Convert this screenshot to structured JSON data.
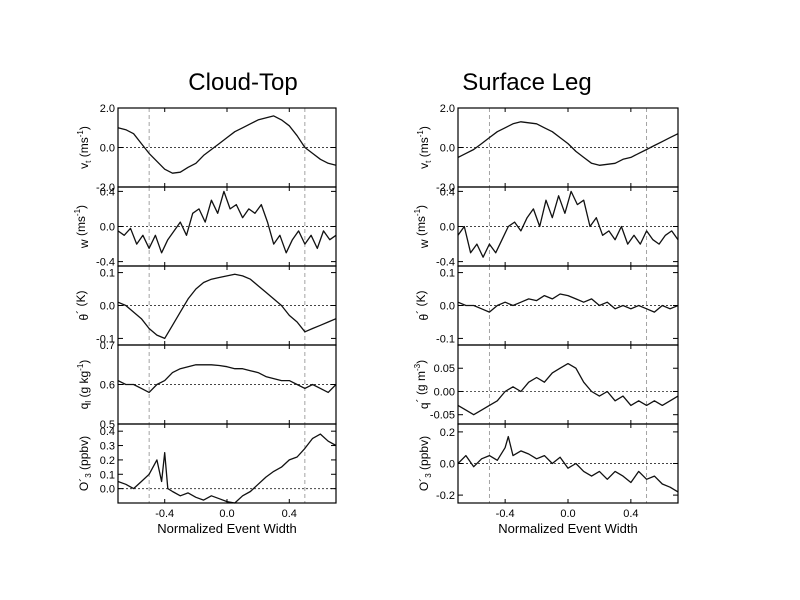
{
  "chart_data": [
    {
      "type": "line",
      "title": "Cloud-Top",
      "xlabel": "Normalized Event Width",
      "xlim": [
        -0.7,
        0.7
      ],
      "xticks": [
        "-0.4",
        "0.0",
        "0.4"
      ],
      "xtick_values": [
        -0.4,
        0.0,
        0.4
      ],
      "vertical_reference_lines": [
        -0.5,
        0.5
      ],
      "panels": [
        {
          "ylabel": "v",
          "ylabel_sub": "t",
          "ylabel_unit_before": " (ms",
          "ylabel_sup": "-1",
          "ylabel_unit_after": ")",
          "ylim": [
            -2.0,
            2.0
          ],
          "yticks": [
            "2.0",
            "0.0",
            "-2.0"
          ],
          "ytick_values": [
            2.0,
            0.0,
            -2.0
          ],
          "x": [
            -0.7,
            -0.65,
            -0.6,
            -0.55,
            -0.5,
            -0.45,
            -0.4,
            -0.35,
            -0.3,
            -0.25,
            -0.2,
            -0.15,
            -0.1,
            -0.05,
            0.0,
            0.05,
            0.1,
            0.15,
            0.2,
            0.25,
            0.3,
            0.35,
            0.4,
            0.45,
            0.5,
            0.55,
            0.6,
            0.65,
            0.7
          ],
          "y": [
            1.0,
            0.9,
            0.7,
            0.2,
            -0.3,
            -0.7,
            -1.1,
            -1.3,
            -1.25,
            -1.0,
            -0.8,
            -0.4,
            -0.1,
            0.2,
            0.5,
            0.8,
            1.0,
            1.2,
            1.4,
            1.5,
            1.6,
            1.4,
            1.1,
            0.6,
            0.0,
            -0.3,
            -0.6,
            -0.8,
            -0.9
          ]
        },
        {
          "ylabel": "w",
          "ylabel_sub": "",
          "ylabel_unit_before": " (ms",
          "ylabel_sup": "-1",
          "ylabel_unit_after": ")",
          "ylim": [
            -0.45,
            0.45
          ],
          "yticks": [
            "0.4",
            "0.0",
            "-0.4"
          ],
          "ytick_values": [
            0.4,
            0.0,
            -0.4
          ],
          "x": [
            -0.7,
            -0.66,
            -0.62,
            -0.58,
            -0.54,
            -0.5,
            -0.46,
            -0.42,
            -0.38,
            -0.34,
            -0.3,
            -0.26,
            -0.22,
            -0.18,
            -0.14,
            -0.1,
            -0.06,
            -0.02,
            0.02,
            0.06,
            0.1,
            0.14,
            0.18,
            0.22,
            0.26,
            0.3,
            0.34,
            0.38,
            0.42,
            0.46,
            0.5,
            0.54,
            0.58,
            0.62,
            0.66,
            0.7
          ],
          "y": [
            -0.05,
            -0.1,
            -0.02,
            -0.2,
            -0.1,
            -0.25,
            -0.1,
            -0.3,
            -0.15,
            -0.05,
            0.05,
            -0.1,
            0.15,
            0.2,
            0.05,
            0.3,
            0.15,
            0.4,
            0.2,
            0.25,
            0.1,
            0.2,
            0.15,
            0.25,
            0.05,
            -0.2,
            -0.1,
            -0.3,
            -0.15,
            -0.05,
            -0.2,
            -0.1,
            -0.25,
            -0.05,
            -0.15,
            -0.1
          ]
        },
        {
          "ylabel": "θ",
          "ylabel_sub": "",
          "ylabel_unit_before": "´ (K)",
          "ylabel_sup": "",
          "ylabel_unit_after": "",
          "ylim": [
            -0.12,
            0.12
          ],
          "yticks": [
            "0.1",
            "0.0",
            "-0.1"
          ],
          "ytick_values": [
            0.1,
            0.0,
            -0.1
          ],
          "x": [
            -0.7,
            -0.65,
            -0.6,
            -0.55,
            -0.5,
            -0.45,
            -0.4,
            -0.35,
            -0.3,
            -0.25,
            -0.2,
            -0.15,
            -0.1,
            -0.05,
            0.0,
            0.05,
            0.1,
            0.15,
            0.2,
            0.25,
            0.3,
            0.35,
            0.4,
            0.45,
            0.5,
            0.55,
            0.6,
            0.65,
            0.7
          ],
          "y": [
            0.01,
            0.0,
            -0.02,
            -0.04,
            -0.07,
            -0.09,
            -0.1,
            -0.06,
            -0.02,
            0.02,
            0.05,
            0.07,
            0.08,
            0.085,
            0.09,
            0.095,
            0.09,
            0.08,
            0.06,
            0.04,
            0.02,
            0.0,
            -0.03,
            -0.05,
            -0.08,
            -0.07,
            -0.06,
            -0.05,
            -0.04
          ]
        },
        {
          "ylabel": "q",
          "ylabel_sub": "l",
          "ylabel_unit_before": " (g kg",
          "ylabel_sup": "-1",
          "ylabel_unit_after": ")",
          "ylim": [
            0.5,
            0.7
          ],
          "yticks": [
            "0.7",
            "0.6",
            "0.5"
          ],
          "ytick_values": [
            0.7,
            0.6,
            0.5
          ],
          "x": [
            -0.7,
            -0.65,
            -0.6,
            -0.55,
            -0.5,
            -0.45,
            -0.4,
            -0.35,
            -0.3,
            -0.25,
            -0.2,
            -0.15,
            -0.1,
            -0.05,
            0.0,
            0.05,
            0.1,
            0.15,
            0.2,
            0.25,
            0.3,
            0.35,
            0.4,
            0.45,
            0.5,
            0.55,
            0.6,
            0.65,
            0.7
          ],
          "y": [
            0.61,
            0.6,
            0.6,
            0.59,
            0.58,
            0.6,
            0.61,
            0.63,
            0.64,
            0.645,
            0.65,
            0.65,
            0.65,
            0.648,
            0.645,
            0.64,
            0.64,
            0.635,
            0.63,
            0.62,
            0.615,
            0.61,
            0.61,
            0.6,
            0.59,
            0.6,
            0.59,
            0.58,
            0.6
          ]
        },
        {
          "ylabel": "O´",
          "ylabel_sub": "3",
          "ylabel_unit_before": " (ppbv)",
          "ylabel_sup": "",
          "ylabel_unit_after": "",
          "ylim": [
            -0.1,
            0.45
          ],
          "yticks": [
            "0.4",
            "0.3",
            "0.2",
            "0.1",
            "0.0"
          ],
          "ytick_values": [
            0.4,
            0.3,
            0.2,
            0.1,
            0.0
          ],
          "x": [
            -0.7,
            -0.65,
            -0.6,
            -0.55,
            -0.5,
            -0.45,
            -0.42,
            -0.4,
            -0.38,
            -0.35,
            -0.3,
            -0.25,
            -0.2,
            -0.15,
            -0.1,
            -0.05,
            0.0,
            0.05,
            0.1,
            0.15,
            0.2,
            0.25,
            0.3,
            0.35,
            0.4,
            0.45,
            0.5,
            0.55,
            0.6,
            0.65,
            0.7
          ],
          "y": [
            0.05,
            0.03,
            0.0,
            0.05,
            0.1,
            0.2,
            0.05,
            0.25,
            0.0,
            -0.02,
            -0.05,
            -0.03,
            -0.06,
            -0.08,
            -0.05,
            -0.07,
            -0.09,
            -0.1,
            -0.05,
            -0.02,
            0.03,
            0.08,
            0.12,
            0.15,
            0.2,
            0.22,
            0.28,
            0.35,
            0.38,
            0.33,
            0.3
          ]
        }
      ]
    },
    {
      "type": "line",
      "title": "Surface Leg",
      "xlabel": "Normalized Event Width",
      "xlim": [
        -0.7,
        0.7
      ],
      "xticks": [
        "-0.4",
        "0.0",
        "0.4"
      ],
      "xtick_values": [
        -0.4,
        0.0,
        0.4
      ],
      "vertical_reference_lines": [
        -0.5,
        0.5
      ],
      "panels": [
        {
          "ylabel": "v",
          "ylabel_sub": "t",
          "ylabel_unit_before": " (ms",
          "ylabel_sup": "-1",
          "ylabel_unit_after": ")",
          "ylim": [
            -2.0,
            2.0
          ],
          "yticks": [
            "2.0",
            "0.0",
            "-2.0"
          ],
          "ytick_values": [
            2.0,
            0.0,
            -2.0
          ],
          "x": [
            -0.7,
            -0.65,
            -0.6,
            -0.55,
            -0.5,
            -0.45,
            -0.4,
            -0.35,
            -0.3,
            -0.25,
            -0.2,
            -0.15,
            -0.1,
            -0.05,
            0.0,
            0.05,
            0.1,
            0.15,
            0.2,
            0.25,
            0.3,
            0.35,
            0.4,
            0.45,
            0.5,
            0.55,
            0.6,
            0.65,
            0.7
          ],
          "y": [
            -0.5,
            -0.3,
            -0.1,
            0.2,
            0.5,
            0.8,
            1.0,
            1.2,
            1.3,
            1.25,
            1.2,
            1.0,
            0.8,
            0.5,
            0.2,
            -0.2,
            -0.5,
            -0.8,
            -0.9,
            -0.85,
            -0.8,
            -0.6,
            -0.5,
            -0.3,
            -0.1,
            0.1,
            0.3,
            0.5,
            0.7
          ]
        },
        {
          "ylabel": "w",
          "ylabel_sub": "",
          "ylabel_unit_before": " (ms",
          "ylabel_sup": "-1",
          "ylabel_unit_after": ")",
          "ylim": [
            -0.45,
            0.45
          ],
          "yticks": [
            "0.4",
            "0.0",
            "-0.4"
          ],
          "ytick_values": [
            0.4,
            0.0,
            -0.4
          ],
          "x": [
            -0.7,
            -0.66,
            -0.62,
            -0.58,
            -0.54,
            -0.5,
            -0.46,
            -0.42,
            -0.38,
            -0.34,
            -0.3,
            -0.26,
            -0.22,
            -0.18,
            -0.14,
            -0.1,
            -0.06,
            -0.02,
            0.02,
            0.06,
            0.1,
            0.14,
            0.18,
            0.22,
            0.26,
            0.3,
            0.34,
            0.38,
            0.42,
            0.46,
            0.5,
            0.54,
            0.58,
            0.62,
            0.66,
            0.7
          ],
          "y": [
            -0.1,
            0.0,
            -0.3,
            -0.2,
            -0.35,
            -0.2,
            -0.3,
            -0.15,
            0.0,
            0.05,
            -0.05,
            0.1,
            0.2,
            0.0,
            0.3,
            0.1,
            0.35,
            0.15,
            0.4,
            0.25,
            0.3,
            0.0,
            0.1,
            -0.1,
            -0.05,
            -0.15,
            0.0,
            -0.2,
            -0.1,
            -0.2,
            -0.05,
            -0.15,
            -0.2,
            -0.1,
            -0.05,
            -0.15
          ]
        },
        {
          "ylabel": "θ",
          "ylabel_sub": "",
          "ylabel_unit_before": "´ (K)",
          "ylabel_sup": "",
          "ylabel_unit_after": "",
          "ylim": [
            -0.12,
            0.12
          ],
          "yticks": [
            "0.1",
            "0.0",
            "-0.1"
          ],
          "ytick_values": [
            0.1,
            0.0,
            -0.1
          ],
          "x": [
            -0.7,
            -0.65,
            -0.6,
            -0.55,
            -0.5,
            -0.45,
            -0.4,
            -0.35,
            -0.3,
            -0.25,
            -0.2,
            -0.15,
            -0.1,
            -0.05,
            0.0,
            0.05,
            0.1,
            0.15,
            0.2,
            0.25,
            0.3,
            0.35,
            0.4,
            0.45,
            0.5,
            0.55,
            0.6,
            0.65,
            0.7
          ],
          "y": [
            0.01,
            0.0,
            0.0,
            -0.01,
            -0.02,
            0.0,
            0.01,
            0.0,
            0.01,
            0.02,
            0.015,
            0.03,
            0.02,
            0.035,
            0.03,
            0.02,
            0.01,
            0.02,
            0.0,
            0.01,
            -0.01,
            0.0,
            -0.01,
            0.0,
            -0.01,
            -0.02,
            0.0,
            -0.01,
            0.0
          ]
        },
        {
          "ylabel": "q",
          "ylabel_sub": "",
          "ylabel_unit_before": "´ (g m",
          "ylabel_sup": "-3",
          "ylabel_unit_after": ")",
          "ylim": [
            -0.07,
            0.1
          ],
          "yticks": [
            "0.05",
            "0.00",
            "-0.05"
          ],
          "ytick_values": [
            0.05,
            0.0,
            -0.05
          ],
          "x": [
            -0.7,
            -0.65,
            -0.6,
            -0.55,
            -0.5,
            -0.45,
            -0.4,
            -0.35,
            -0.3,
            -0.25,
            -0.2,
            -0.15,
            -0.1,
            -0.05,
            0.0,
            0.05,
            0.1,
            0.15,
            0.2,
            0.25,
            0.3,
            0.35,
            0.4,
            0.45,
            0.5,
            0.55,
            0.6,
            0.65,
            0.7
          ],
          "y": [
            -0.03,
            -0.04,
            -0.05,
            -0.04,
            -0.03,
            -0.02,
            0.0,
            0.01,
            0.0,
            0.02,
            0.03,
            0.02,
            0.04,
            0.05,
            0.06,
            0.05,
            0.02,
            0.0,
            -0.01,
            0.0,
            -0.02,
            -0.01,
            -0.03,
            -0.02,
            -0.03,
            -0.02,
            -0.03,
            -0.02,
            -0.01
          ]
        },
        {
          "ylabel": "O´",
          "ylabel_sub": "3",
          "ylabel_unit_before": " (ppbv)",
          "ylabel_sup": "",
          "ylabel_unit_after": "",
          "ylim": [
            -0.25,
            0.25
          ],
          "yticks": [
            "0.2",
            "0.0",
            "-0.2"
          ],
          "ytick_values": [
            0.2,
            0.0,
            -0.2
          ],
          "x": [
            -0.7,
            -0.65,
            -0.6,
            -0.55,
            -0.5,
            -0.45,
            -0.4,
            -0.38,
            -0.35,
            -0.3,
            -0.25,
            -0.2,
            -0.15,
            -0.1,
            -0.05,
            0.0,
            0.05,
            0.1,
            0.15,
            0.2,
            0.25,
            0.3,
            0.35,
            0.4,
            0.45,
            0.5,
            0.55,
            0.6,
            0.65,
            0.7
          ],
          "y": [
            0.0,
            0.05,
            -0.02,
            0.03,
            0.05,
            0.02,
            0.1,
            0.17,
            0.05,
            0.08,
            0.06,
            0.03,
            0.05,
            0.0,
            0.04,
            -0.03,
            0.0,
            -0.05,
            -0.08,
            -0.05,
            -0.1,
            -0.05,
            -0.08,
            -0.12,
            -0.05,
            -0.1,
            -0.08,
            -0.13,
            -0.15,
            -0.18
          ]
        }
      ]
    }
  ]
}
